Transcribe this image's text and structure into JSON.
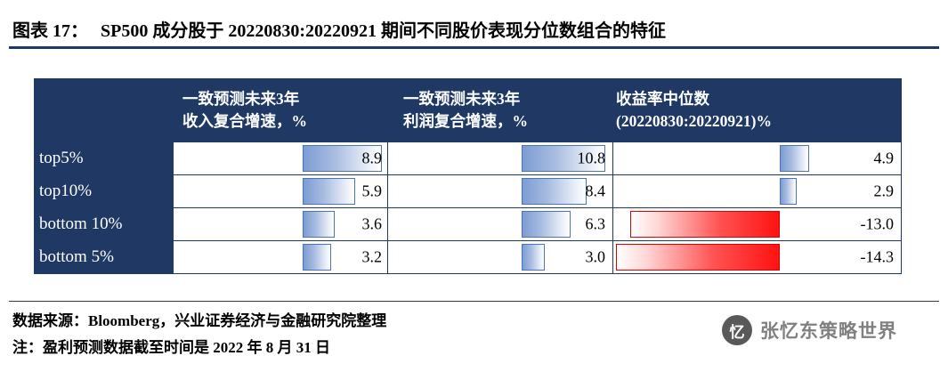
{
  "title_prefix": "图表 17：",
  "title_text": "SP500 成分股于 20220830:20220921 期间不同股价表现分位数组合的特征",
  "table": {
    "headers": [
      {
        "line1": "一致预测未来3年",
        "line2": "收入复合增速，%"
      },
      {
        "line1": "一致预测未来3年",
        "line2": "利润复合增速，%"
      },
      {
        "line1": "收益率中位数",
        "line2": "(20220830:20220921)%"
      }
    ]
  },
  "chart_data": {
    "type": "table",
    "title": "SP500 成分股于 20220830:20220921 期间不同股价表现分位数组合的特征",
    "categories": [
      "top5%",
      "top10%",
      "bottom 10%",
      "bottom 5%"
    ],
    "series": [
      {
        "name": "一致预测未来3年收入复合增速，%",
        "values": [
          8.9,
          5.9,
          3.6,
          3.2
        ]
      },
      {
        "name": "一致预测未来3年利润复合增速，%",
        "values": [
          10.8,
          8.4,
          6.3,
          3.0
        ]
      },
      {
        "name": "收益率中位数(20220830:20220921)%",
        "values": [
          4.9,
          2.9,
          -13.0,
          -14.3
        ]
      }
    ],
    "value_format": "one_decimal",
    "bar_style": {
      "positive_fill": "#7c9cd3",
      "positive_border": "#4a74b8",
      "negative_fill": "#ff1212",
      "negative_border": "#e00000",
      "direction": "in-cell data bars, negatives extend left of axis"
    }
  },
  "colors": {
    "navy": "#1F3864",
    "brand_gray": "#808080"
  },
  "footer": {
    "source": "数据来源：Bloomberg，兴业证券经济与金融研究院整理",
    "note": "注：盈利预测数据截至时间是 2022 年 8 月 31 日",
    "brand": "张忆东策略世界",
    "logo_glyph": "忆"
  }
}
